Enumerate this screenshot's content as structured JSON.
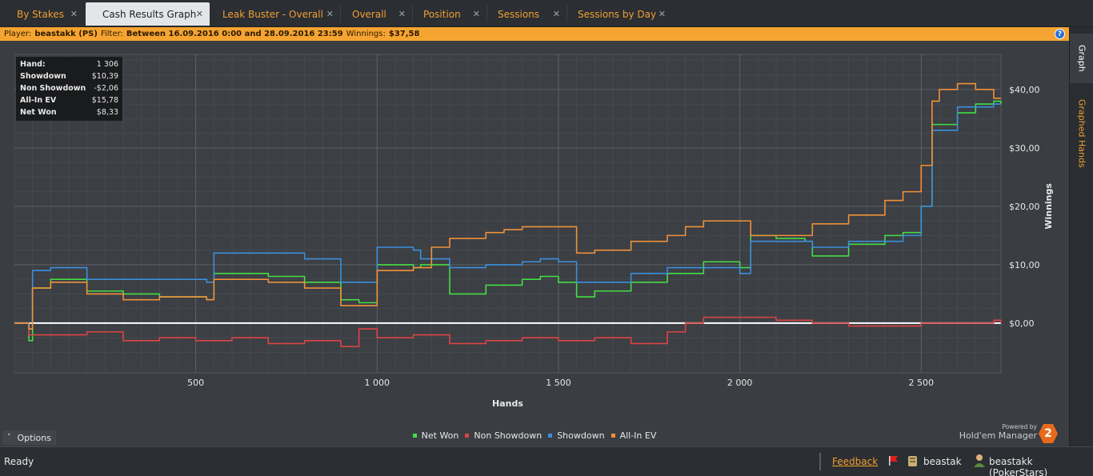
{
  "tabs": [
    {
      "label": "By Stakes",
      "active": false
    },
    {
      "label": "Cash Results Graph",
      "active": true
    },
    {
      "label": "Leak Buster - Overall",
      "active": false
    },
    {
      "label": "Overall",
      "active": false
    },
    {
      "label": "Position",
      "active": false
    },
    {
      "label": "Sessions",
      "active": false
    },
    {
      "label": "Sessions by Day",
      "active": false
    }
  ],
  "filter": {
    "player_label": "Player:",
    "player_value": "beastakk (PS)",
    "filter_label": "Filter:",
    "filter_value": "Between 16.09.2016 0:00 and 28.09.2016 23:59",
    "winnings_label": "Winnings:",
    "winnings_value": "$37,58"
  },
  "side_tabs": [
    {
      "label": "Graph",
      "active": true
    },
    {
      "label": "Graphed Hands",
      "active": false
    }
  ],
  "stats": [
    {
      "label": "Hand:",
      "value": "1 306"
    },
    {
      "label": "Showdown",
      "value": "$10,39"
    },
    {
      "label": "Non Showdown",
      "value": "-$2,06"
    },
    {
      "label": "All-In EV",
      "value": "$15,78"
    },
    {
      "label": "Net Won",
      "value": "$8,33"
    }
  ],
  "chart_data": {
    "type": "line",
    "xlabel": "Hands",
    "ylabel": "Winnings",
    "xlim": [
      0,
      2720
    ],
    "ylim": [
      -8.5,
      46
    ],
    "x_ticks": [
      500,
      1000,
      1500,
      2000,
      2500
    ],
    "x_tick_labels": [
      "500",
      "1 000",
      "1 500",
      "2 000",
      "2 500"
    ],
    "y_ticks": [
      0,
      10,
      20,
      30,
      40
    ],
    "y_tick_labels": [
      "$0,00",
      "$10,00",
      "$20,00",
      "$30,00",
      "$40,00"
    ],
    "grid": true,
    "series": [
      {
        "name": "Net Won",
        "color": "#44dd44",
        "x": [
          0,
          40,
          50,
          100,
          200,
          300,
          400,
          530,
          550,
          700,
          800,
          900,
          950,
          1000,
          1100,
          1120,
          1200,
          1300,
          1400,
          1450,
          1500,
          1550,
          1600,
          1700,
          1800,
          1900,
          2000,
          2030,
          2100,
          2180,
          2200,
          2300,
          2400,
          2450,
          2500,
          2530,
          2600,
          2650,
          2700,
          2720
        ],
        "y": [
          0,
          -3,
          6,
          7.5,
          5.5,
          5,
          4.5,
          4,
          8.5,
          8,
          7,
          4,
          3.5,
          10,
          9.5,
          10,
          5,
          6.5,
          7.5,
          8,
          7,
          4.5,
          5.5,
          7,
          8.5,
          10.5,
          9.5,
          15,
          14.5,
          14,
          11.5,
          13.5,
          15,
          15.5,
          20,
          34,
          36,
          37.5,
          38,
          37.5
        ]
      },
      {
        "name": "Non Showdown",
        "color": "#dd4444",
        "x": [
          0,
          40,
          100,
          200,
          300,
          400,
          500,
          600,
          700,
          800,
          900,
          950,
          1000,
          1100,
          1200,
          1300,
          1400,
          1500,
          1600,
          1700,
          1800,
          1850,
          1900,
          2000,
          2100,
          2200,
          2300,
          2400,
          2500,
          2600,
          2700,
          2720
        ],
        "y": [
          0,
          -2,
          -2,
          -1.5,
          -3,
          -2.5,
          -3,
          -2.5,
          -3.5,
          -3,
          -4,
          -1,
          -2.5,
          -2,
          -3.5,
          -3,
          -2.5,
          -3,
          -2.5,
          -3.5,
          -1.5,
          0,
          1,
          1,
          0.5,
          0,
          -0.5,
          -0.5,
          0,
          0,
          0.5,
          0
        ]
      },
      {
        "name": "Showdown",
        "color": "#3b8fdd",
        "x": [
          0,
          40,
          50,
          100,
          200,
          300,
          400,
          530,
          550,
          700,
          800,
          900,
          950,
          1000,
          1100,
          1120,
          1200,
          1300,
          1400,
          1450,
          1500,
          1550,
          1600,
          1700,
          1800,
          1900,
          2000,
          2030,
          2100,
          2180,
          2200,
          2300,
          2400,
          2450,
          2500,
          2530,
          2600,
          2650,
          2700,
          2720
        ],
        "y": [
          0,
          -1,
          9,
          9.5,
          7.5,
          7.5,
          7.5,
          7,
          12,
          12,
          11,
          7,
          7,
          13,
          12.5,
          11,
          9.5,
          10,
          10.5,
          11,
          10.5,
          7,
          7,
          8.5,
          9.5,
          9.5,
          8.5,
          14,
          14,
          14,
          13,
          14,
          14,
          15,
          20,
          33,
          37,
          37,
          37.5,
          37.5
        ]
      },
      {
        "name": "All-In EV",
        "color": "#f0913a",
        "x": [
          0,
          40,
          50,
          100,
          200,
          300,
          400,
          530,
          550,
          700,
          800,
          900,
          950,
          1000,
          1100,
          1150,
          1200,
          1300,
          1350,
          1400,
          1500,
          1550,
          1600,
          1700,
          1800,
          1850,
          1900,
          2000,
          2030,
          2100,
          2200,
          2300,
          2400,
          2450,
          2500,
          2530,
          2550,
          2600,
          2650,
          2700,
          2720
        ],
        "y": [
          0,
          -1,
          6,
          7,
          5,
          4,
          4.5,
          4,
          7.5,
          7,
          6,
          3,
          3,
          9,
          9.5,
          13,
          14.5,
          15.5,
          16,
          16.5,
          16.5,
          12,
          12.5,
          14,
          15,
          16.5,
          17.5,
          17.5,
          15,
          15,
          17,
          18.5,
          21,
          22.5,
          27,
          38,
          40,
          41,
          40,
          38.5,
          38.5
        ]
      }
    ]
  },
  "options": {
    "label": "Options"
  },
  "powered_by": {
    "line1": "Powered by",
    "line2": "Hold'em Manager",
    "logo": "2"
  },
  "status": {
    "ready": "Ready",
    "feedback": "Feedback",
    "db_user": "beastak",
    "player": "beastakk (PokerStars)"
  }
}
